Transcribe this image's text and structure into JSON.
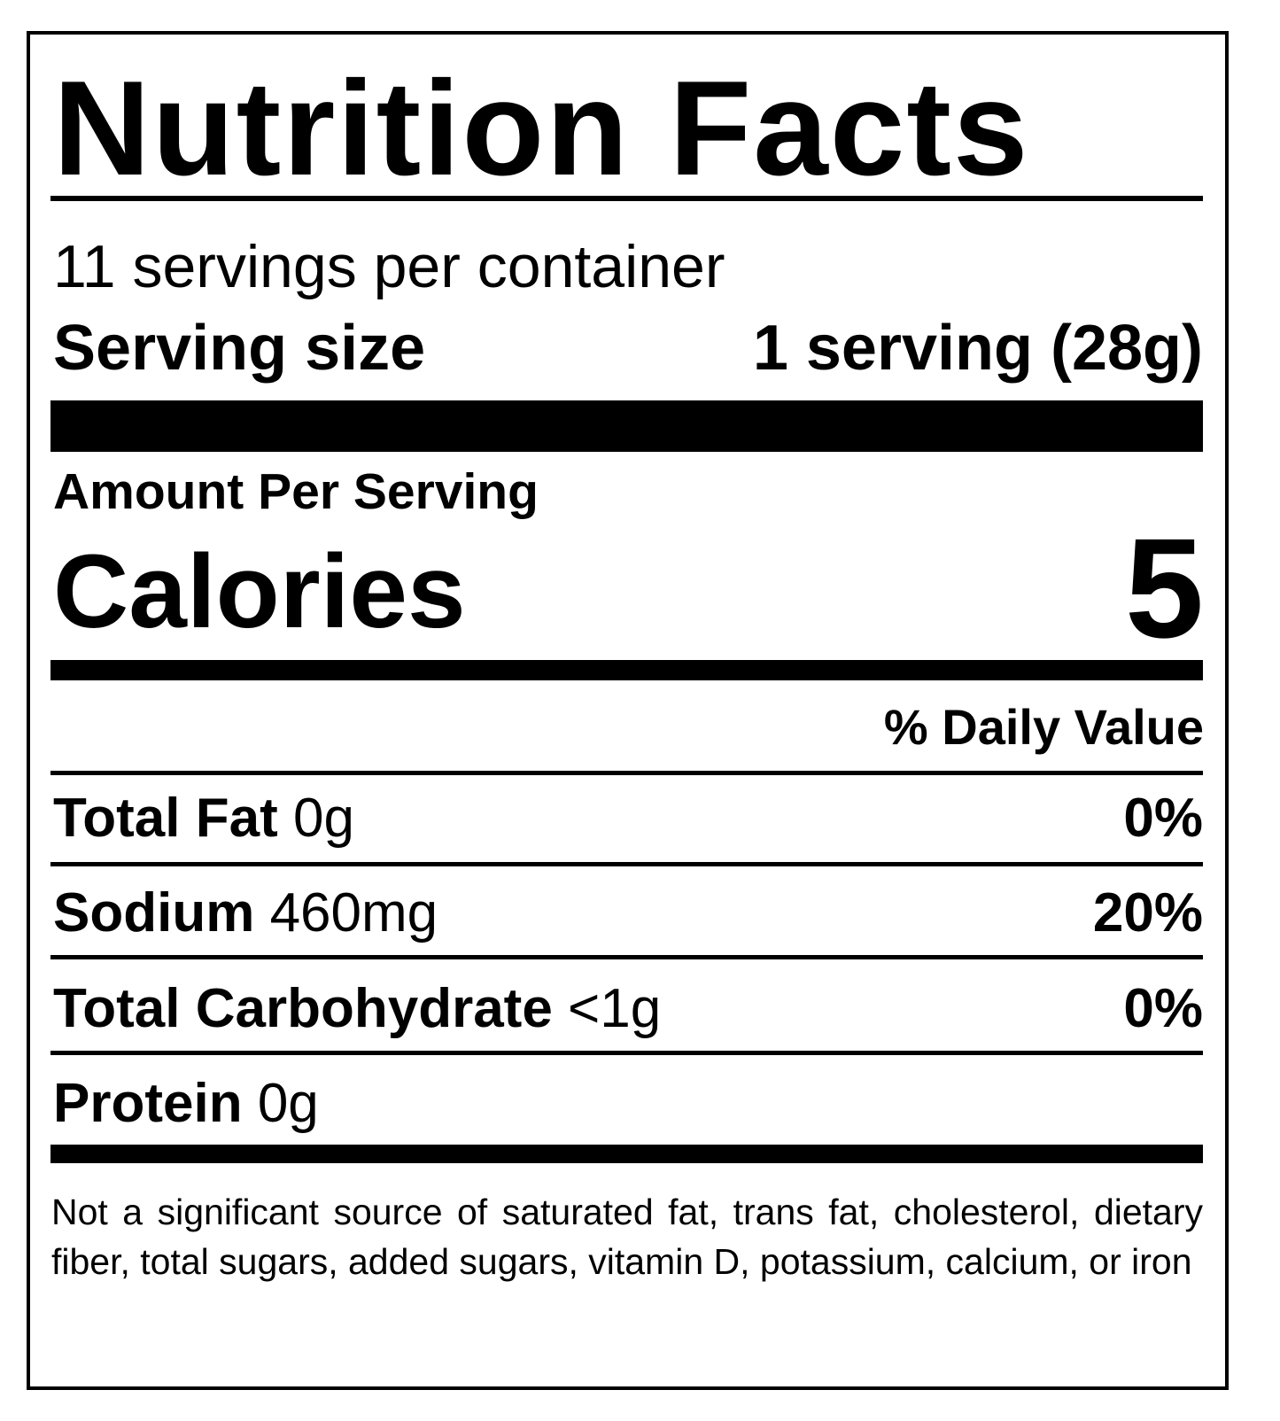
{
  "title": "Nutrition Facts",
  "servings_per_container": "11 servings per container",
  "serving_size": {
    "label": "Serving size",
    "value": "1 serving (28g)"
  },
  "amount_per_serving": "Amount Per Serving",
  "calories": {
    "label": "Calories",
    "value": "5"
  },
  "daily_value_header": "% Daily Value",
  "nutrients": [
    {
      "name": "Total Fat",
      "amount": "0g",
      "dv": "0%"
    },
    {
      "name": "Sodium",
      "amount": "460mg",
      "dv": "20%"
    },
    {
      "name": "Total Carbohydrate",
      "amount": "<1g",
      "dv": "0%"
    },
    {
      "name": "Protein",
      "amount": "0g",
      "dv": ""
    }
  ],
  "footnote": "Not a significant source of saturated fat, trans fat, cholesterol, dietary fiber, total sugars, added sugars, vitamin D, potassium, calcium, or iron"
}
